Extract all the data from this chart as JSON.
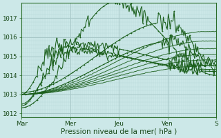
{
  "background_color": "#cce8e8",
  "plot_bg_color": "#cce8e8",
  "line_color": "#1a5e1a",
  "grid_color_major": "#a8c8c8",
  "grid_color_minor": "#b8d8d8",
  "xlabel": "Pression niveau de la mer( hPa )",
  "ylim": [
    1011.8,
    1017.8
  ],
  "yticks": [
    1012,
    1013,
    1014,
    1015,
    1016,
    1017
  ],
  "xtick_labels": [
    "Mar",
    "Mer",
    "Jeu",
    "Ven",
    "S"
  ],
  "xtick_positions": [
    0.0,
    0.25,
    0.5,
    0.75,
    1.0
  ],
  "xlabel_fontsize": 7.5,
  "ytick_fontsize": 6.5,
  "xtick_fontsize": 6.5
}
